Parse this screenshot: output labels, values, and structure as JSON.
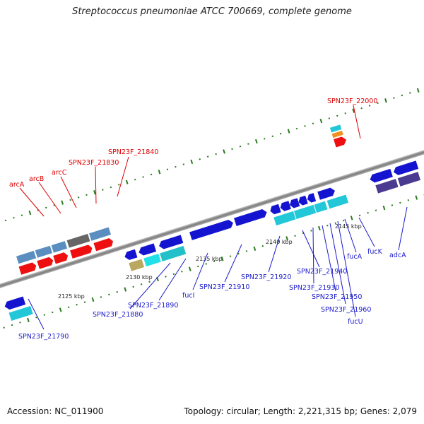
{
  "title": "Streptococcus pneumoniae ATCC 700669, complete genome",
  "footer": {
    "accession": "Accession: NC_011900",
    "info": "Topology: circular; Length: 2,221,315 bp; Genes: 2,079"
  },
  "kbp_labels": [
    "2125 kbp",
    "2130 kbp",
    "2135 kbp",
    "2140 kbp",
    "2145 kbp"
  ],
  "colors": {
    "red_label": "#dd0000",
    "blue_label": "#1a1acc",
    "backbone": "#888888",
    "tick": "#2a7a1e"
  },
  "upper_labels": [
    {
      "text": "arcA"
    },
    {
      "text": "arcB"
    },
    {
      "text": "arcC"
    },
    {
      "text": "SPN23F_21830"
    },
    {
      "text": "SPN23F_21840"
    },
    {
      "text": "SPN23F_22000"
    }
  ],
  "lower_labels": [
    {
      "text": "SPN23F_21790"
    },
    {
      "text": "SPN23F_21880"
    },
    {
      "text": "SPN23F_21890"
    },
    {
      "text": "fucI"
    },
    {
      "text": "SPN23F_21910"
    },
    {
      "text": "SPN23F_21920"
    },
    {
      "text": "SPN23F_21940"
    },
    {
      "text": "SPN23F_21930"
    },
    {
      "text": "SPN23F_21950"
    },
    {
      "text": "SPN23F_21960"
    },
    {
      "text": "fucU"
    },
    {
      "text": "fucA"
    },
    {
      "text": "fucK"
    },
    {
      "text": "adcA"
    }
  ]
}
